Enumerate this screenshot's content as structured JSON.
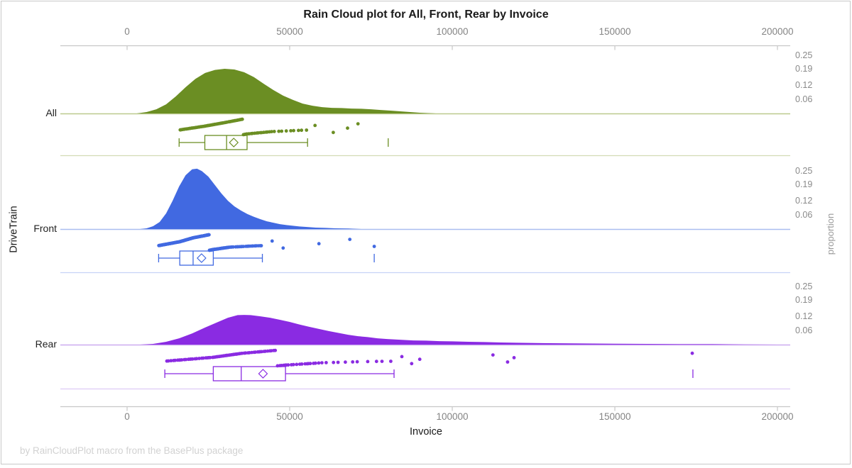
{
  "window": {
    "bg": "#ffffff",
    "border_color": "#c8c8c8"
  },
  "title": "Rain Cloud plot for All, Front, Rear by Invoice",
  "footer": "by RainCloudPlot macro from the BasePlus package",
  "x_axis": {
    "label": "Invoice",
    "tick_labels": [
      "0",
      "50000",
      "100000",
      "150000",
      "200000"
    ],
    "tick_values": [
      0,
      50000,
      100000,
      150000,
      200000
    ]
  },
  "y_axis": {
    "label": "DriveTrain",
    "categories": [
      "All",
      "Front",
      "Rear"
    ]
  },
  "right_axis": {
    "label": "proportion",
    "tick_labels": [
      "0.25",
      "0.19",
      "0.12",
      "0.06"
    ],
    "tick_values": [
      0.25,
      0.19,
      0.12,
      0.06
    ]
  },
  "text_colors": {
    "title": "#1a1a1a",
    "tick": "#848484",
    "axis_label": "#1a1a1a",
    "right_tick": "#8a8a8a",
    "right_label": "#9a9a9a",
    "footer": "#d2d2d2",
    "category": "#222222",
    "axis_line": "#c8c8c8"
  },
  "chart_data": {
    "type": "raincloud",
    "x_range": [
      0,
      200000
    ],
    "grid": false,
    "proportion_axis_max": 0.28,
    "series": [
      {
        "name": "All",
        "color": "#6B8E23",
        "baseline_color": "#bcca8e",
        "separator_color": "#d3dcb4",
        "density": [
          [
            3000,
            0
          ],
          [
            6000,
            0.006
          ],
          [
            9000,
            0.018
          ],
          [
            12000,
            0.039
          ],
          [
            15000,
            0.073
          ],
          [
            18000,
            0.112
          ],
          [
            21000,
            0.148
          ],
          [
            24000,
            0.173
          ],
          [
            27000,
            0.186
          ],
          [
            30000,
            0.191
          ],
          [
            33000,
            0.188
          ],
          [
            36000,
            0.176
          ],
          [
            39000,
            0.155
          ],
          [
            42000,
            0.127
          ],
          [
            45000,
            0.1
          ],
          [
            48000,
            0.076
          ],
          [
            51000,
            0.058
          ],
          [
            54000,
            0.042
          ],
          [
            57000,
            0.033
          ],
          [
            60000,
            0.027
          ],
          [
            63000,
            0.024
          ],
          [
            66000,
            0.023
          ],
          [
            69000,
            0.021
          ],
          [
            72000,
            0.02
          ],
          [
            75000,
            0.018
          ],
          [
            78000,
            0.015
          ],
          [
            81000,
            0.012
          ],
          [
            84000,
            0.009
          ],
          [
            87000,
            0.006
          ],
          [
            90000,
            0.003
          ],
          [
            95000,
            0
          ]
        ],
        "box": {
          "whisker_low": 16000,
          "q1": 23900,
          "median": 30600,
          "q3": 36900,
          "whisker_high": 55500,
          "mean": 32800,
          "far_tick": 80300
        },
        "rain": {
          "count": 88,
          "quantiles": [
            [
              0,
              16000
            ],
            [
              0.25,
              23900
            ],
            [
              0.5,
              30600
            ],
            [
              0.75,
              36900
            ],
            [
              0.9,
              44500
            ],
            [
              0.97,
              52000
            ],
            [
              1,
              55500
            ]
          ],
          "far_points": [
            57800,
            63400,
            67800,
            71000
          ]
        }
      },
      {
        "name": "Front",
        "color": "#4169E1",
        "baseline_color": "#aabdf0",
        "separator_color": "#c6d2f6",
        "density": [
          [
            4000,
            0
          ],
          [
            6000,
            0.003
          ],
          [
            8000,
            0.012
          ],
          [
            10000,
            0.03
          ],
          [
            12000,
            0.067
          ],
          [
            14000,
            0.121
          ],
          [
            16000,
            0.182
          ],
          [
            18000,
            0.23
          ],
          [
            20000,
            0.255
          ],
          [
            21500,
            0.258
          ],
          [
            23000,
            0.248
          ],
          [
            25000,
            0.224
          ],
          [
            27000,
            0.188
          ],
          [
            29000,
            0.152
          ],
          [
            31000,
            0.121
          ],
          [
            33000,
            0.097
          ],
          [
            35000,
            0.079
          ],
          [
            37000,
            0.064
          ],
          [
            39000,
            0.052
          ],
          [
            41000,
            0.042
          ],
          [
            43000,
            0.033
          ],
          [
            45000,
            0.027
          ],
          [
            47000,
            0.021
          ],
          [
            49000,
            0.017
          ],
          [
            51000,
            0.014
          ],
          [
            53000,
            0.011
          ],
          [
            55000,
            0.009
          ],
          [
            58000,
            0.006
          ],
          [
            61000,
            0.005
          ],
          [
            64000,
            0.003
          ],
          [
            68000,
            0.002
          ],
          [
            72000,
            0
          ]
        ],
        "box": {
          "whisker_low": 9700,
          "q1": 16200,
          "median": 20300,
          "q3": 26500,
          "whisker_high": 41600,
          "mean": 22900,
          "far_tick": 76000
        },
        "rain": {
          "count": 210,
          "quantiles": [
            [
              0,
              9700
            ],
            [
              0.25,
              16200
            ],
            [
              0.5,
              20300
            ],
            [
              0.75,
              26500
            ],
            [
              0.9,
              31500
            ],
            [
              0.97,
              38000
            ],
            [
              1,
              41600
            ]
          ],
          "far_points": [
            44600,
            48000,
            59000,
            68500,
            76000
          ]
        }
      },
      {
        "name": "Rear",
        "color": "#8A2BE2",
        "baseline_color": "#ccaaf0",
        "separator_color": "#ddcaf6",
        "density": [
          [
            4000,
            0
          ],
          [
            8000,
            0.003
          ],
          [
            12000,
            0.012
          ],
          [
            16000,
            0.027
          ],
          [
            20000,
            0.048
          ],
          [
            24000,
            0.073
          ],
          [
            28000,
            0.097
          ],
          [
            31000,
            0.115
          ],
          [
            34000,
            0.126
          ],
          [
            36000,
            0.127
          ],
          [
            38000,
            0.126
          ],
          [
            41000,
            0.121
          ],
          [
            44000,
            0.115
          ],
          [
            47000,
            0.106
          ],
          [
            50000,
            0.097
          ],
          [
            53000,
            0.086
          ],
          [
            56000,
            0.076
          ],
          [
            59000,
            0.067
          ],
          [
            62000,
            0.058
          ],
          [
            65000,
            0.05
          ],
          [
            68000,
            0.042
          ],
          [
            71000,
            0.036
          ],
          [
            74000,
            0.032
          ],
          [
            77000,
            0.027
          ],
          [
            80000,
            0.024
          ],
          [
            84000,
            0.021
          ],
          [
            88000,
            0.018
          ],
          [
            92000,
            0.017
          ],
          [
            96000,
            0.015
          ],
          [
            100000,
            0.014
          ],
          [
            105000,
            0.012
          ],
          [
            110000,
            0.011
          ],
          [
            115000,
            0.009
          ],
          [
            120000,
            0.008
          ],
          [
            130000,
            0.006
          ],
          [
            140000,
            0.005
          ],
          [
            150000,
            0.004
          ],
          [
            160000,
            0.003
          ],
          [
            170000,
            0.002
          ],
          [
            180000,
            0.002
          ],
          [
            190000,
            0.001
          ],
          [
            200000,
            0
          ]
        ],
        "box": {
          "whisker_low": 11600,
          "q1": 26500,
          "median": 35100,
          "q3": 48700,
          "whisker_high": 82100,
          "mean": 41800,
          "far_tick": 174000
        },
        "rain": {
          "count": 98,
          "quantiles": [
            [
              0,
              11600
            ],
            [
              0.25,
              26500
            ],
            [
              0.5,
              35100
            ],
            [
              0.75,
              48700
            ],
            [
              0.9,
              60000
            ],
            [
              0.97,
              72000
            ],
            [
              1,
              82000
            ]
          ],
          "far_points": [
            84500,
            87500,
            90000,
            112500,
            117000,
            119000,
            173800
          ]
        }
      }
    ]
  }
}
